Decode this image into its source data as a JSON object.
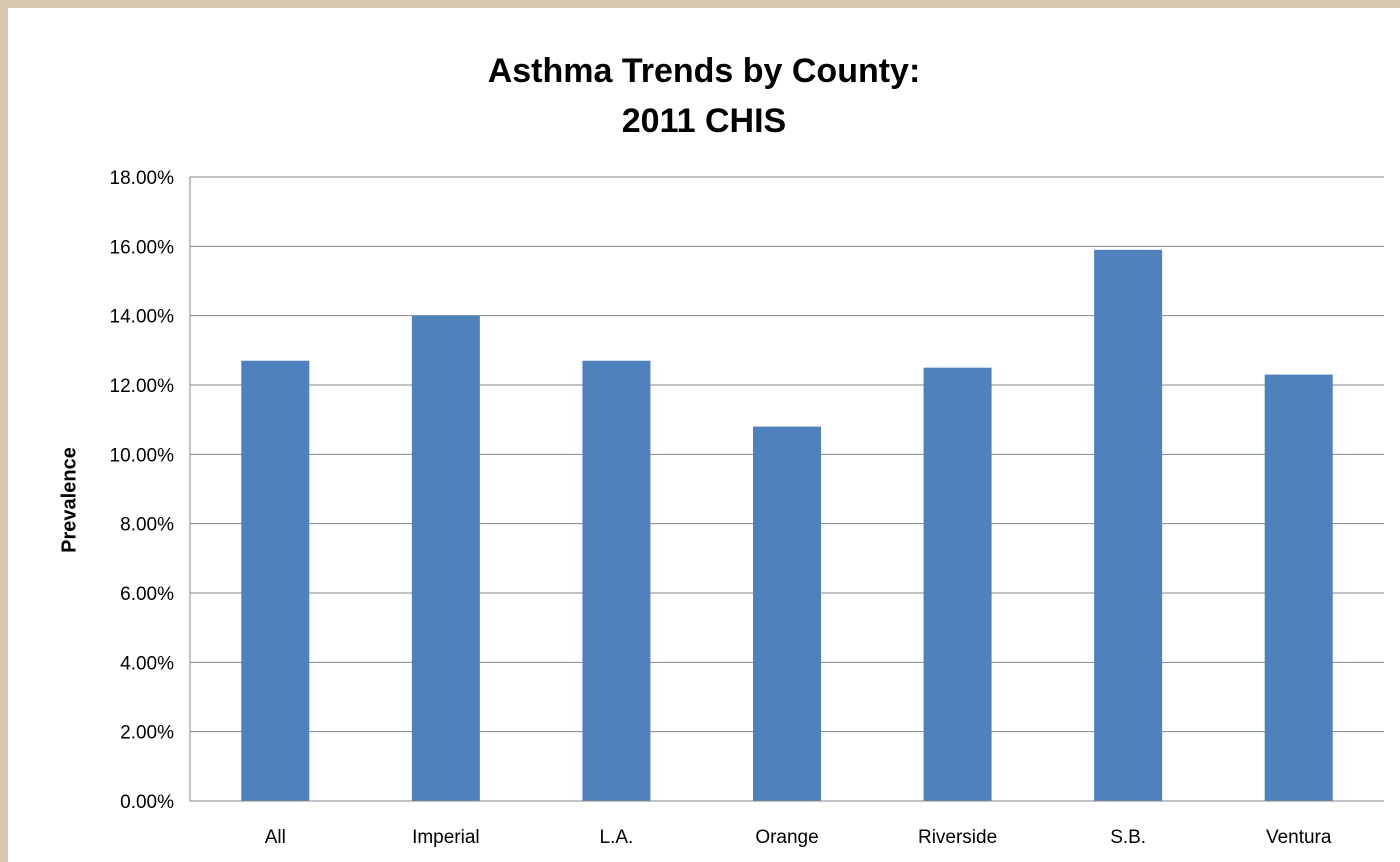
{
  "chart_data": {
    "type": "bar",
    "title_lines": [
      "Asthma Trends by County:",
      "2011 CHIS"
    ],
    "xlabel": "",
    "ylabel": "Prevalence",
    "categories": [
      "All",
      "Imperial",
      "L.A.",
      "Orange",
      "Riverside",
      "S.B.",
      "Ventura"
    ],
    "series": [
      {
        "values": [
          0.127,
          0.14,
          0.127,
          0.108,
          0.125,
          0.159,
          0.123
        ]
      }
    ],
    "ylim": [
      0,
      0.18
    ],
    "yticks": [
      0,
      0.02,
      0.04,
      0.06,
      0.08,
      0.1,
      0.12,
      0.14,
      0.16,
      0.18
    ],
    "ytick_labels": [
      "0.00%",
      "2.00%",
      "4.00%",
      "6.00%",
      "8.00%",
      "10.00%",
      "12.00%",
      "14.00%",
      "16.00%",
      "18.00%"
    ],
    "grid": true,
    "legend": "none",
    "colors": {
      "bar": "#4f81bd",
      "grid": "#868686",
      "background": "#d9c8ad"
    }
  }
}
